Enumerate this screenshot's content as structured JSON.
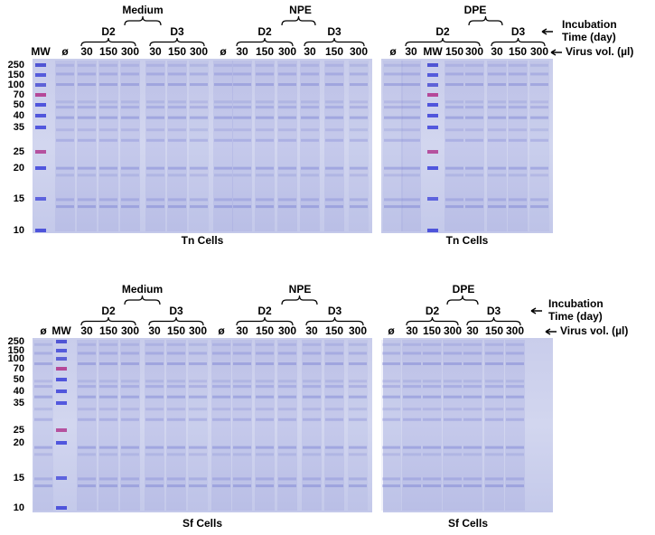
{
  "panels": [
    {
      "incubation_label": [
        "Incubation",
        "Time (day)"
      ],
      "virus_label": "Virus vol. (µl)",
      "mw_markers": [
        "250",
        "150",
        "100",
        "70",
        "50",
        "40",
        "35",
        "25",
        "20",
        "15",
        "10"
      ],
      "gels": [
        {
          "groups": [
            {
              "label": "Medium",
              "subgroups": [
                "D2",
                "D3"
              ]
            },
            {
              "label": "NPE",
              "subgroups": [
                "D2",
                "D3"
              ]
            }
          ],
          "lanes": [
            "MW",
            "ø",
            "30",
            "150",
            "300",
            "30",
            "150",
            "300",
            "ø",
            "30",
            "150",
            "300",
            "30",
            "150",
            "300"
          ],
          "caption": "Tn Cells"
        },
        {
          "groups": [
            {
              "label": "DPE",
              "subgroups": [
                "D2",
                "D3"
              ]
            }
          ],
          "lanes": [
            "ø",
            "30",
            "MW",
            "150",
            "300",
            "30",
            "150",
            "300"
          ],
          "caption": "Tn Cells"
        }
      ]
    },
    {
      "incubation_label": [
        "Incubation",
        "Time (day)"
      ],
      "virus_label": "Virus vol. (µl)",
      "mw_markers": [
        "250",
        "150",
        "100",
        "70",
        "50",
        "40",
        "35",
        "25",
        "20",
        "15",
        "10"
      ],
      "gels": [
        {
          "groups": [
            {
              "label": "Medium",
              "subgroups": [
                "D2",
                "D3"
              ]
            },
            {
              "label": "NPE",
              "subgroups": [
                "D2",
                "D3"
              ]
            }
          ],
          "lanes": [
            "ø",
            "MW",
            "30",
            "150",
            "300",
            "30",
            "150",
            "300",
            "ø",
            "30",
            "150",
            "300",
            "30",
            "150",
            "300"
          ],
          "caption": "Sf Cells"
        },
        {
          "groups": [
            {
              "label": "DPE",
              "subgroups": [
                "D2",
                "D3"
              ]
            }
          ],
          "lanes": [
            "ø",
            "30",
            "150",
            "300",
            "30",
            "150",
            "300"
          ],
          "caption": "Sf Cells"
        }
      ]
    }
  ]
}
